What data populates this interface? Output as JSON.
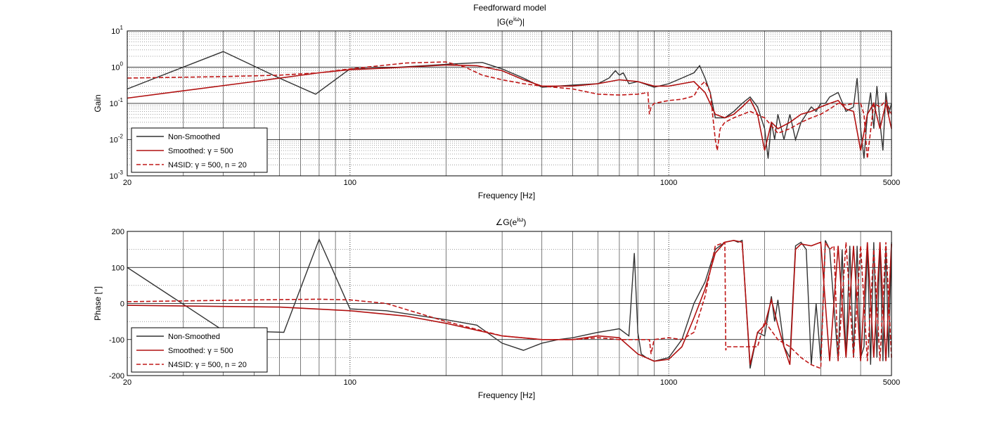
{
  "figure_title": "Feedforward model",
  "colors": {
    "non_smoothed": "#333333",
    "smoothed": "#b01010",
    "n4sid": "#c01818",
    "grid_major": "#000000",
    "grid_minor": "#555555"
  },
  "chart_data": [
    {
      "type": "line",
      "title": "|G(e^{iω})|",
      "title_text": "|G(e",
      "title_sup": "iω",
      "title_end": ")|",
      "xlabel": "Frequency [Hz]",
      "ylabel": "Gain",
      "xscale": "log",
      "yscale": "log",
      "xlim": [
        20,
        5000
      ],
      "ylim": [
        0.001,
        10
      ],
      "x_ticks": [
        20,
        100,
        1000,
        5000
      ],
      "x_tick_labels": [
        "20",
        "100",
        "1000",
        "5000"
      ],
      "y_ticks": [
        0.001,
        0.01,
        0.1,
        1,
        10
      ],
      "y_tick_base": [
        "10",
        "10",
        "10",
        "10",
        "10"
      ],
      "y_tick_exp": [
        "-3",
        "-2",
        "-1",
        "0",
        "1"
      ],
      "grid": "on (major and minor)",
      "legend_position": "bottom-left",
      "legend": [
        "Non-Smoothed",
        "Smoothed: γ = 500",
        "N4SID: γ = 500, n = 20"
      ],
      "series": [
        {
          "name": "Non-Smoothed",
          "style": "solid",
          "x": [
            20,
            40,
            60,
            78,
            100,
            130,
            170,
            200,
            260,
            300,
            350,
            400,
            500,
            600,
            650,
            680,
            700,
            720,
            750,
            800,
            900,
            1000,
            1100,
            1200,
            1250,
            1300,
            1350,
            1400,
            1500,
            1600,
            1700,
            1800,
            1900,
            2000,
            2050,
            2100,
            2150,
            2200,
            2300,
            2400,
            2500,
            2600,
            2700,
            2800,
            2900,
            3000,
            3100,
            3200,
            3400,
            3600,
            3800,
            3900,
            4000,
            4100,
            4200,
            4300,
            4400,
            4500,
            4600,
            4700,
            4800,
            4900,
            5000
          ],
          "y": [
            0.25,
            2.7,
            0.5,
            0.18,
            0.9,
            0.95,
            1.1,
            1.2,
            1.35,
            0.9,
            0.5,
            0.28,
            0.32,
            0.35,
            0.5,
            0.8,
            0.6,
            0.7,
            0.35,
            0.4,
            0.28,
            0.35,
            0.5,
            0.7,
            1.1,
            0.5,
            0.2,
            0.04,
            0.04,
            0.06,
            0.1,
            0.15,
            0.08,
            0.02,
            0.003,
            0.03,
            0.01,
            0.05,
            0.01,
            0.05,
            0.01,
            0.03,
            0.05,
            0.08,
            0.06,
            0.1,
            0.1,
            0.15,
            0.2,
            0.06,
            0.08,
            0.5,
            0.02,
            0.003,
            0.05,
            0.2,
            0.02,
            0.3,
            0.03,
            0.005,
            0.2,
            0.05,
            0.1
          ]
        },
        {
          "name": "Smoothed: γ = 500",
          "style": "solid",
          "x": [
            20,
            50,
            80,
            100,
            150,
            200,
            250,
            300,
            350,
            400,
            500,
            600,
            700,
            800,
            900,
            1000,
            1100,
            1200,
            1300,
            1400,
            1500,
            1600,
            1700,
            1800,
            1900,
            2000,
            2100,
            2200,
            2400,
            2600,
            2800,
            3000,
            3200,
            3400,
            3600,
            3800,
            4000,
            4200,
            4400,
            4600,
            4800,
            5000
          ],
          "y": [
            0.14,
            0.4,
            0.7,
            0.85,
            1.0,
            1.15,
            1.1,
            0.8,
            0.45,
            0.3,
            0.3,
            0.35,
            0.45,
            0.4,
            0.3,
            0.3,
            0.35,
            0.4,
            0.2,
            0.05,
            0.04,
            0.05,
            0.08,
            0.13,
            0.05,
            0.005,
            0.03,
            0.02,
            0.03,
            0.05,
            0.06,
            0.08,
            0.1,
            0.12,
            0.07,
            0.06,
            0.005,
            0.05,
            0.1,
            0.02,
            0.1,
            0.02
          ]
        },
        {
          "name": "N4SID: γ = 500, n = 20",
          "style": "dashed",
          "x": [
            20,
            40,
            60,
            80,
            100,
            150,
            200,
            230,
            260,
            300,
            350,
            400,
            500,
            600,
            700,
            800,
            860,
            870,
            880,
            900,
            1000,
            1100,
            1200,
            1250,
            1300,
            1350,
            1400,
            1420,
            1450,
            1500,
            1600,
            1800,
            2000,
            2200,
            2400,
            2600,
            2800,
            3000,
            3200,
            3400,
            3600,
            3800,
            4000,
            4100,
            4200,
            4400,
            4600,
            4800,
            5000
          ],
          "y": [
            0.5,
            0.55,
            0.6,
            0.7,
            0.9,
            1.3,
            1.4,
            1.0,
            0.6,
            0.45,
            0.35,
            0.3,
            0.25,
            0.18,
            0.17,
            0.18,
            0.2,
            0.05,
            0.08,
            0.1,
            0.12,
            0.13,
            0.16,
            0.3,
            0.4,
            0.2,
            0.01,
            0.005,
            0.02,
            0.03,
            0.04,
            0.06,
            0.04,
            0.015,
            0.02,
            0.03,
            0.04,
            0.05,
            0.07,
            0.1,
            0.09,
            0.1,
            0.1,
            0.05,
            0.003,
            0.1,
            0.08,
            0.12,
            0.05
          ]
        }
      ]
    },
    {
      "type": "line",
      "title": "∠G(e^{iω})",
      "title_text": "∠G(e",
      "title_sup": "iω",
      "title_end": ")",
      "xlabel": "Frequency [Hz]",
      "ylabel": "Phase [°]",
      "xscale": "log",
      "yscale": "linear",
      "xlim": [
        20,
        5000
      ],
      "ylim": [
        -200,
        200
      ],
      "x_ticks": [
        20,
        100,
        1000,
        5000
      ],
      "x_tick_labels": [
        "20",
        "100",
        "1000",
        "5000"
      ],
      "y_ticks": [
        -200,
        -100,
        0,
        100,
        200
      ],
      "y_tick_labels": [
        "-200",
        "-100",
        "0",
        "100",
        "200"
      ],
      "grid": "on (major and minor)",
      "legend_position": "bottom-left",
      "legend": [
        "Non-Smoothed",
        "Smoothed: γ = 500",
        "N4SID: γ = 500, n = 20"
      ],
      "series": [
        {
          "name": "Non-Smoothed",
          "style": "solid",
          "x": [
            20,
            40,
            62,
            80,
            100,
            130,
            200,
            250,
            300,
            350,
            400,
            450,
            500,
            600,
            650,
            700,
            750,
            780,
            800,
            820,
            850,
            900,
            1000,
            1100,
            1200,
            1300,
            1400,
            1500,
            1600,
            1650,
            1700,
            1800,
            1900,
            2000,
            2100,
            2150,
            2200,
            2300,
            2400,
            2500,
            2600,
            2700,
            2800,
            2900,
            3000,
            3100,
            3200,
            3400,
            3500,
            3600,
            3700,
            3800,
            3900,
            4000,
            4100,
            4200,
            4300,
            4400,
            4500,
            4600,
            4700,
            4800,
            4900,
            5000
          ],
          "y": [
            100,
            -75,
            -80,
            178,
            -15,
            -20,
            -45,
            -60,
            -110,
            -130,
            -110,
            -100,
            -95,
            -80,
            -75,
            -70,
            -90,
            140,
            -80,
            -140,
            -150,
            -160,
            -150,
            -100,
            0,
            60,
            150,
            170,
            175,
            170,
            175,
            -180,
            -80,
            -90,
            20,
            -50,
            10,
            -120,
            -150,
            160,
            170,
            150,
            -170,
            0,
            -160,
            175,
            150,
            -160,
            150,
            -150,
            160,
            -150,
            160,
            -150,
            -120,
            160,
            -170,
            170,
            -150,
            170,
            -160,
            160,
            -150,
            170
          ]
        },
        {
          "name": "Smoothed: γ = 500",
          "style": "solid",
          "x": [
            20,
            60,
            100,
            150,
            200,
            300,
            400,
            500,
            600,
            700,
            800,
            900,
            1000,
            1100,
            1200,
            1300,
            1400,
            1500,
            1600,
            1700,
            1800,
            1900,
            2000,
            2100,
            2200,
            2300,
            2400,
            2500,
            2600,
            2800,
            3000,
            3200,
            3400,
            3600,
            3800,
            4000,
            4200,
            4400,
            4600,
            4800,
            5000
          ],
          "y": [
            -5,
            -10,
            -20,
            -35,
            -55,
            -90,
            -100,
            -100,
            -90,
            -95,
            -140,
            -160,
            -155,
            -120,
            -40,
            40,
            140,
            170,
            175,
            170,
            -170,
            -80,
            -60,
            10,
            -60,
            -120,
            -170,
            150,
            165,
            160,
            170,
            -160,
            160,
            -150,
            160,
            -160,
            170,
            -150,
            170,
            -160,
            165
          ]
        },
        {
          "name": "N4SID: γ = 500, n = 20",
          "style": "dashed",
          "x": [
            20,
            50,
            80,
            100,
            130,
            200,
            300,
            400,
            500,
            600,
            700,
            800,
            870,
            880,
            900,
            1000,
            1100,
            1200,
            1300,
            1400,
            1500,
            1510,
            1520,
            1600,
            1800,
            1900,
            2000,
            2200,
            2400,
            2600,
            2800,
            3000,
            3100,
            3200,
            3300,
            3400,
            3600,
            3800,
            4000,
            4200,
            4400,
            4600,
            4800,
            5000
          ],
          "y": [
            5,
            10,
            12,
            10,
            0,
            -50,
            -90,
            -100,
            -100,
            -95,
            -100,
            -100,
            -100,
            -140,
            -100,
            -95,
            -100,
            -80,
            20,
            160,
            170,
            -130,
            -120,
            -120,
            -120,
            -120,
            -50,
            -100,
            -120,
            -150,
            -170,
            -180,
            170,
            150,
            160,
            -160,
            170,
            -150,
            160,
            -160,
            150,
            -160,
            170,
            -150
          ]
        }
      ]
    }
  ]
}
